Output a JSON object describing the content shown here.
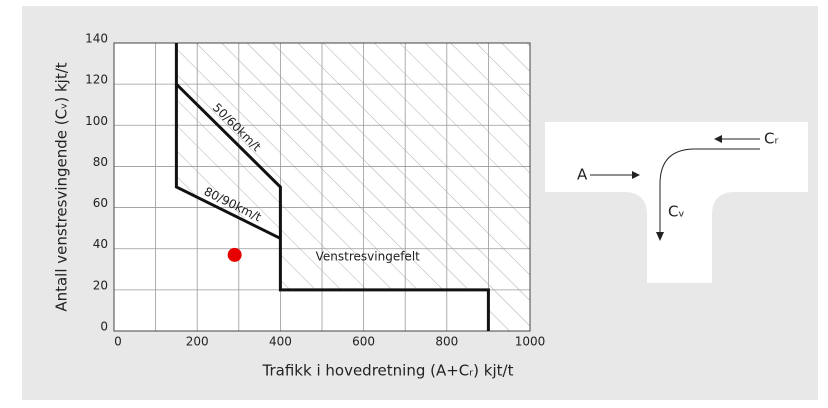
{
  "chart_data": {
    "type": "line",
    "xlabel": "Trafikk i hovedretning (A+Cᵣ) kjt/t",
    "ylabel": "Antall venstresvingende (Cᵥ) kjt/t",
    "xlim": [
      0,
      1000
    ],
    "ylim": [
      0,
      140
    ],
    "xticks": [
      0,
      200,
      400,
      600,
      800,
      1000
    ],
    "x_minor_grid": [
      100,
      300,
      500,
      700,
      900
    ],
    "yticks": [
      0,
      20,
      40,
      60,
      80,
      100,
      120,
      140
    ],
    "grid": true,
    "series": [
      {
        "name": "50/60km/t",
        "color": "#111111",
        "x": [
          150,
          150,
          400,
          400,
          900,
          900
        ],
        "values": [
          140,
          120,
          70,
          20,
          20,
          0
        ]
      },
      {
        "name": "80/90km/t",
        "color": "#111111",
        "x": [
          150,
          150,
          400
        ],
        "values": [
          120,
          70,
          45
        ]
      }
    ],
    "points": [
      {
        "x": 290,
        "y": 37,
        "color": "#e60000"
      }
    ],
    "region_label": "Venstresvingefelt"
  },
  "junction_labels": [
    "A",
    "Cᵣ",
    "Cᵥ"
  ]
}
